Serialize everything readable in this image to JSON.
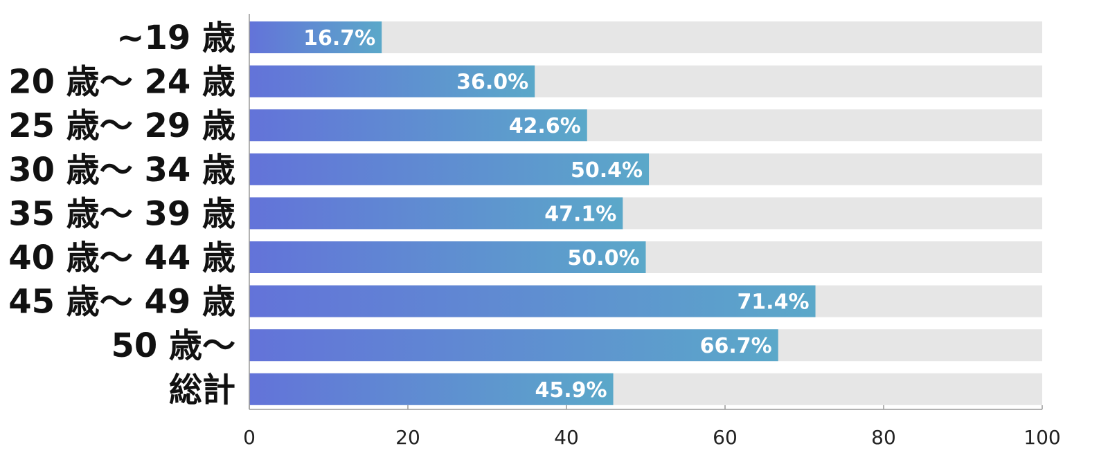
{
  "chart_data": {
    "type": "bar",
    "orientation": "horizontal",
    "categories": [
      "~19 歳",
      "20 歳～ 24 歳",
      "25 歳～ 29 歳",
      "30 歳～ 34 歳",
      "35 歳～ 39 歳",
      "40 歳～ 44 歳",
      "45 歳～ 49 歳",
      "50 歳～",
      "総計"
    ],
    "values": [
      16.7,
      36.0,
      42.6,
      50.4,
      47.1,
      50.0,
      71.4,
      66.7,
      45.9
    ],
    "data_labels": [
      "16.7%",
      "36.0%",
      "42.6%",
      "50.4%",
      "47.1%",
      "50.0%",
      "71.4%",
      "66.7%",
      "45.9%"
    ],
    "background_max": 100,
    "xlim": [
      0,
      100
    ],
    "xticks": [
      0,
      20,
      40,
      60,
      80,
      100
    ],
    "xtick_labels": [
      "0",
      "20",
      "40",
      "60",
      "80",
      "100"
    ],
    "title": "",
    "xlabel": "",
    "ylabel": "",
    "grid": false,
    "colors": {
      "bar_gradient_start": "#6373d9",
      "bar_gradient_end": "#5ba8c9",
      "background_bar": "#e6e6e6",
      "axis": "#999999",
      "data_label": "#ffffff",
      "category_label": "#111111"
    }
  }
}
